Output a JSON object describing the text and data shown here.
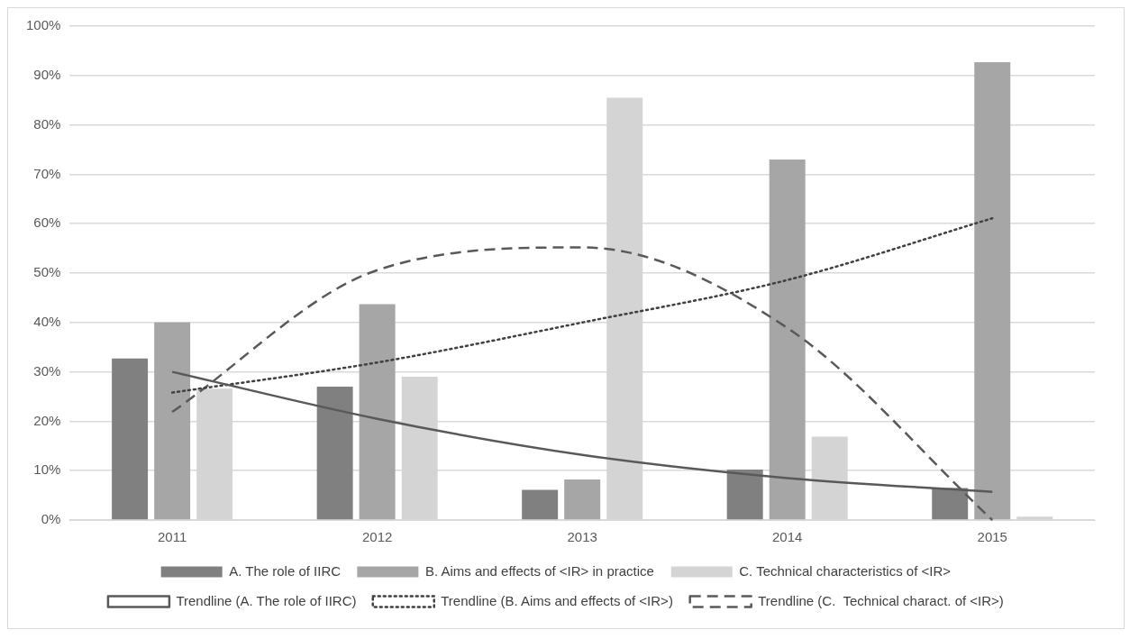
{
  "chart_data": {
    "type": "bar",
    "categories": [
      "2011",
      "2012",
      "2013",
      "2014",
      "2015"
    ],
    "ylim": [
      0,
      100
    ],
    "yticks": [
      {
        "value": 0,
        "label": "0%"
      },
      {
        "value": 10,
        "label": "10%"
      },
      {
        "value": 20,
        "label": "20%"
      },
      {
        "value": 30,
        "label": "30%"
      },
      {
        "value": 40,
        "label": "40%"
      },
      {
        "value": 50,
        "label": "50%"
      },
      {
        "value": 60,
        "label": "60%"
      },
      {
        "value": 70,
        "label": "70%"
      },
      {
        "value": 80,
        "label": "80%"
      },
      {
        "value": 90,
        "label": "90%"
      },
      {
        "value": 100,
        "label": "100%"
      }
    ],
    "grid": "y",
    "legend": "bottom",
    "marker": "none",
    "series": [
      {
        "name": "A. The role of IIRC",
        "color": "#808080",
        "values": [
          32.7,
          27,
          6.1,
          10.2,
          6.5
        ]
      },
      {
        "name": "B. Aims and effects of <IR> in practice",
        "color": "#a6a6a6",
        "values": [
          40,
          43.7,
          8.2,
          73,
          92.7
        ]
      },
      {
        "name": "C. Technical characteristics of <IR>",
        "color": "#d4d4d4",
        "values": [
          26.6,
          29,
          85.5,
          16.9,
          0.7
        ]
      },
      {
        "name": "Trendline (A. The role of IIRC)",
        "type": "line",
        "line_style": "solid",
        "color": "#595959",
        "values": [
          30,
          20.5,
          13.2,
          8.5,
          5.7
        ]
      },
      {
        "name": "Trendline (B. Aims and effects of <IR>)",
        "type": "line",
        "line_style": "dotted",
        "color": "#404040",
        "values": [
          25.8,
          31.9,
          40,
          48.6,
          61.1
        ]
      },
      {
        "name": "Trendline (C.  Technical charact. of <IR>)",
        "type": "line",
        "line_style": "dashed",
        "color": "#595959",
        "values": [
          21.9,
          50.6,
          55.2,
          38.9,
          0
        ]
      }
    ]
  }
}
